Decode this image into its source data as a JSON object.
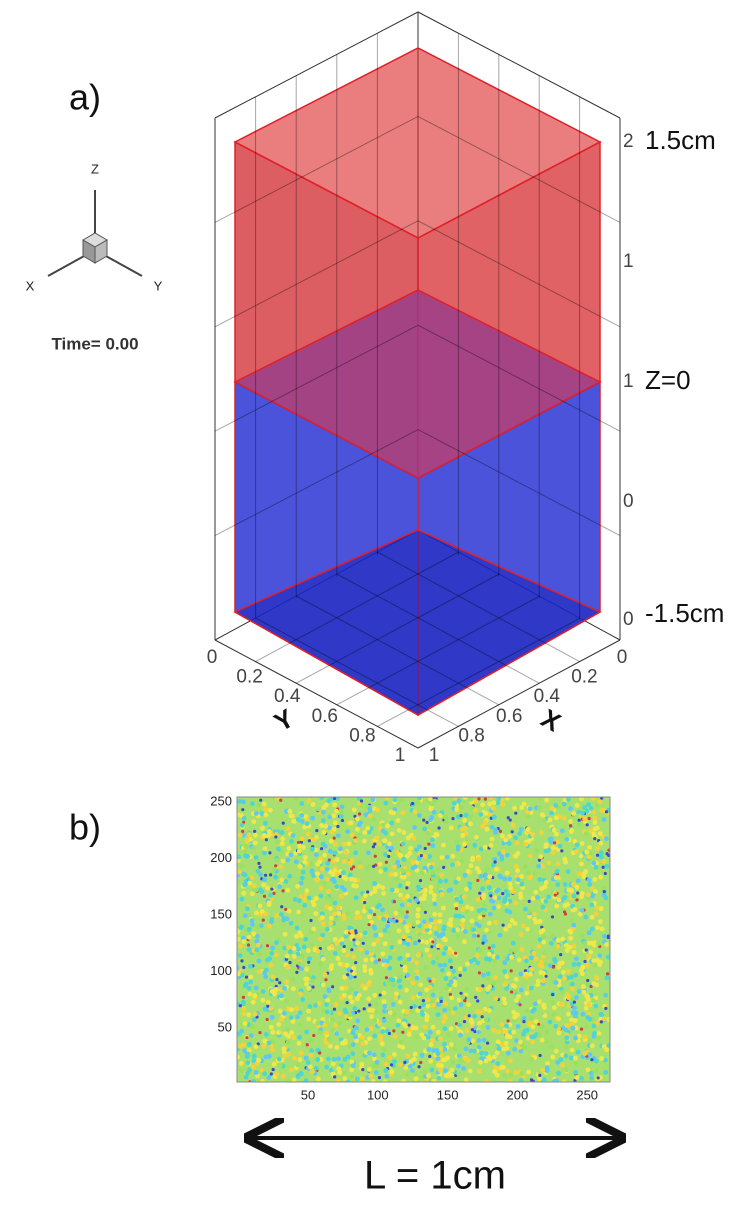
{
  "panel_a": {
    "label": "a)",
    "triad": {
      "z": "Z",
      "x": "X",
      "y": "Y"
    },
    "time": "Time= 0.00",
    "z_ticks": [
      "2",
      "1",
      "1",
      "0",
      "0"
    ],
    "annotations": {
      "top": "1.5cm",
      "middle": "Z=0",
      "bottom": "-1.5cm"
    },
    "y_axis": {
      "label": "Y",
      "ticks": [
        "0",
        "0.2",
        "0.4",
        "0.6",
        "0.8",
        "1"
      ]
    },
    "x_axis": {
      "label": "X",
      "ticks": [
        "0",
        "0.2",
        "0.4",
        "0.6",
        "0.8",
        "1"
      ]
    }
  },
  "panel_b": {
    "label": "b)",
    "y_ticks": [
      250,
      200,
      150,
      100,
      50
    ],
    "x_ticks": [
      50,
      100,
      150,
      200,
      250
    ],
    "length_label": "L = 1cm"
  }
}
